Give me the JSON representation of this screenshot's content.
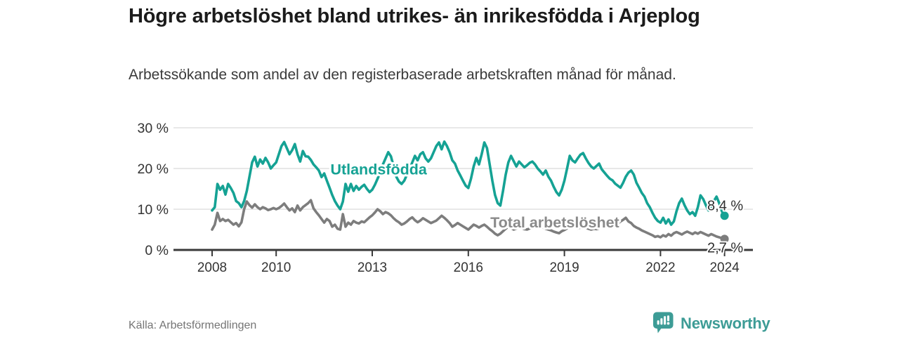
{
  "header": {
    "title": "Högre arbetslöshet bland utrikes- än inrikesfödda i Arjeplog",
    "subtitle": "Arbetssökande som andel av den registerbaserade arbetskraften månad för månad."
  },
  "chart_data": {
    "type": "line",
    "x_start_year": 2008,
    "x_step_months": 1,
    "ylim": [
      0,
      30
    ],
    "grid": true,
    "legend_position": "inline-labels",
    "y_ticks": [
      {
        "label": "0 %",
        "value": 0
      },
      {
        "label": "10 %",
        "value": 10
      },
      {
        "label": "20 %",
        "value": 20
      },
      {
        "label": "30 %",
        "value": 30
      }
    ],
    "x_ticks": [
      {
        "label": "2008",
        "year": 2008
      },
      {
        "label": "2010",
        "year": 2010
      },
      {
        "label": "2013",
        "year": 2013
      },
      {
        "label": "2016",
        "year": 2016
      },
      {
        "label": "2019",
        "year": 2019
      },
      {
        "label": "2022",
        "year": 2022
      },
      {
        "label": "2024",
        "year": 2024
      }
    ],
    "series": [
      {
        "name": "Utlandsfödda",
        "color": "#15a294",
        "end_label": "8,4 %",
        "end_label_position": "above",
        "values": [
          9.7,
          10.5,
          16.2,
          14.8,
          15.7,
          13.6,
          16.2,
          15.2,
          14.0,
          12.0,
          11.5,
          10.5,
          12.0,
          14.5,
          18.0,
          21.5,
          22.9,
          20.5,
          22.2,
          21.2,
          22.6,
          21.5,
          20.0,
          20.8,
          21.5,
          23.5,
          25.5,
          26.5,
          25.0,
          23.5,
          24.5,
          26.0,
          23.5,
          21.7,
          24.3,
          23.0,
          22.9,
          22.1,
          21.0,
          20.3,
          19.5,
          17.9,
          18.8,
          17.0,
          15.3,
          13.5,
          12.0,
          10.9,
          10.0,
          11.9,
          16.2,
          14.3,
          16.2,
          14.5,
          15.7,
          14.8,
          15.5,
          16.0,
          15.0,
          14.2,
          14.8,
          16.0,
          17.5,
          19.0,
          21.0,
          22.5,
          24.0,
          23.0,
          20.5,
          18.0,
          16.8,
          16.2,
          17.0,
          18.5,
          20.0,
          21.5,
          23.1,
          22.0,
          23.5,
          24.0,
          22.5,
          21.7,
          22.5,
          24.0,
          25.5,
          26.4,
          24.7,
          26.6,
          25.5,
          24.0,
          22.0,
          21.2,
          19.5,
          18.3,
          17.0,
          15.8,
          15.2,
          17.5,
          20.5,
          22.6,
          21.0,
          23.5,
          26.4,
          25.0,
          21.0,
          17.0,
          13.5,
          11.5,
          10.9,
          14.5,
          18.5,
          21.5,
          23.1,
          21.8,
          20.5,
          21.7,
          21.0,
          20.3,
          20.8,
          21.4,
          21.7,
          21.0,
          20.0,
          19.3,
          18.5,
          19.5,
          18.0,
          17.0,
          15.5,
          14.2,
          13.4,
          14.8,
          17.0,
          20.0,
          23.1,
          22.0,
          21.5,
          22.5,
          23.4,
          23.8,
          22.5,
          21.4,
          20.5,
          20.0,
          20.6,
          21.2,
          19.8,
          19.0,
          18.2,
          17.5,
          17.1,
          16.3,
          15.8,
          15.3,
          16.5,
          18.0,
          19.0,
          19.5,
          18.5,
          16.5,
          15.3,
          14.0,
          13.1,
          11.5,
          10.5,
          9.1,
          7.9,
          7.1,
          6.7,
          7.9,
          6.5,
          7.5,
          6.2,
          7.0,
          9.5,
          11.5,
          12.6,
          11.0,
          9.7,
          8.8,
          9.3,
          8.4,
          10.5,
          13.4,
          12.5,
          11.0,
          9.7,
          10.5,
          12.0,
          13.1,
          11.5,
          9.5,
          8.4
        ]
      },
      {
        "name": "Total arbetslöshet",
        "color": "#7d7d7d",
        "end_label": "2,7 %",
        "end_label_position": "below",
        "values": [
          5.0,
          6.2,
          9.1,
          7.1,
          7.6,
          7.1,
          7.4,
          6.8,
          6.2,
          6.6,
          5.8,
          6.8,
          10.0,
          11.9,
          11.0,
          10.4,
          11.2,
          10.5,
          10.0,
          10.5,
          10.2,
          9.8,
          10.0,
          10.3,
          10.0,
          10.3,
          10.8,
          11.4,
          10.5,
          9.7,
          10.2,
          9.3,
          10.9,
          9.7,
          10.5,
          11.0,
          11.5,
          12.2,
          10.2,
          9.3,
          8.5,
          7.6,
          6.7,
          7.6,
          7.1,
          5.7,
          6.2,
          5.2,
          5.0,
          8.8,
          5.7,
          6.7,
          6.2,
          7.1,
          6.7,
          6.5,
          7.0,
          6.8,
          7.4,
          8.0,
          8.5,
          9.2,
          10.0,
          9.5,
          8.8,
          9.3,
          9.0,
          8.5,
          7.8,
          7.2,
          6.8,
          6.2,
          6.5,
          7.0,
          7.6,
          8.0,
          7.3,
          6.8,
          7.2,
          7.8,
          7.4,
          7.0,
          6.6,
          6.9,
          7.2,
          7.8,
          8.4,
          7.9,
          7.3,
          6.6,
          5.7,
          6.1,
          6.6,
          6.2,
          5.8,
          5.4,
          5.0,
          5.6,
          6.2,
          5.9,
          5.5,
          5.9,
          6.2,
          5.7,
          5.1,
          4.6,
          4.0,
          3.6,
          4.0,
          4.6,
          5.2,
          5.7,
          5.4,
          5.0,
          5.3,
          5.7,
          5.4,
          5.1,
          5.0,
          5.3,
          5.6,
          5.9,
          6.2,
          5.9,
          5.5,
          5.2,
          5.0,
          4.8,
          4.5,
          4.3,
          4.1,
          4.6,
          4.9,
          5.3,
          5.6,
          5.9,
          5.6,
          5.3,
          5.5,
          5.8,
          5.5,
          5.2,
          5.0,
          5.2,
          5.1,
          5.3,
          5.6,
          6.1,
          6.6,
          6.9,
          6.6,
          6.4,
          6.5,
          7.0,
          7.4,
          7.9,
          7.0,
          6.6,
          5.9,
          5.5,
          5.2,
          4.8,
          4.5,
          4.2,
          3.9,
          3.6,
          3.2,
          3.4,
          3.1,
          3.6,
          3.3,
          3.9,
          3.5,
          4.1,
          4.4,
          4.1,
          3.8,
          4.2,
          4.5,
          4.2,
          3.9,
          4.3,
          4.0,
          4.4,
          4.1,
          3.8,
          3.5,
          3.9,
          3.6,
          3.3,
          3.1,
          2.9,
          2.7
        ]
      }
    ],
    "series_labels": [
      {
        "text": "Utlandsfödda",
        "year": 2013.2,
        "value": 19.7,
        "color": "#15a294"
      },
      {
        "text": "Total arbetslöshet",
        "year": 2018.7,
        "value": 6.7,
        "color": "#8a8a8a"
      }
    ]
  },
  "footer": {
    "source": "Källa: Arbetsförmedlingen",
    "brand": "Newsworthy"
  },
  "colors": {
    "accent_teal": "#15a294",
    "line_gray": "#7d7d7d",
    "brand_teal": "#3d9c96",
    "grid": "#dadada",
    "axis": "#3a3a3a",
    "tick_text": "#333333",
    "end_label_text": "#2f2f2f"
  }
}
